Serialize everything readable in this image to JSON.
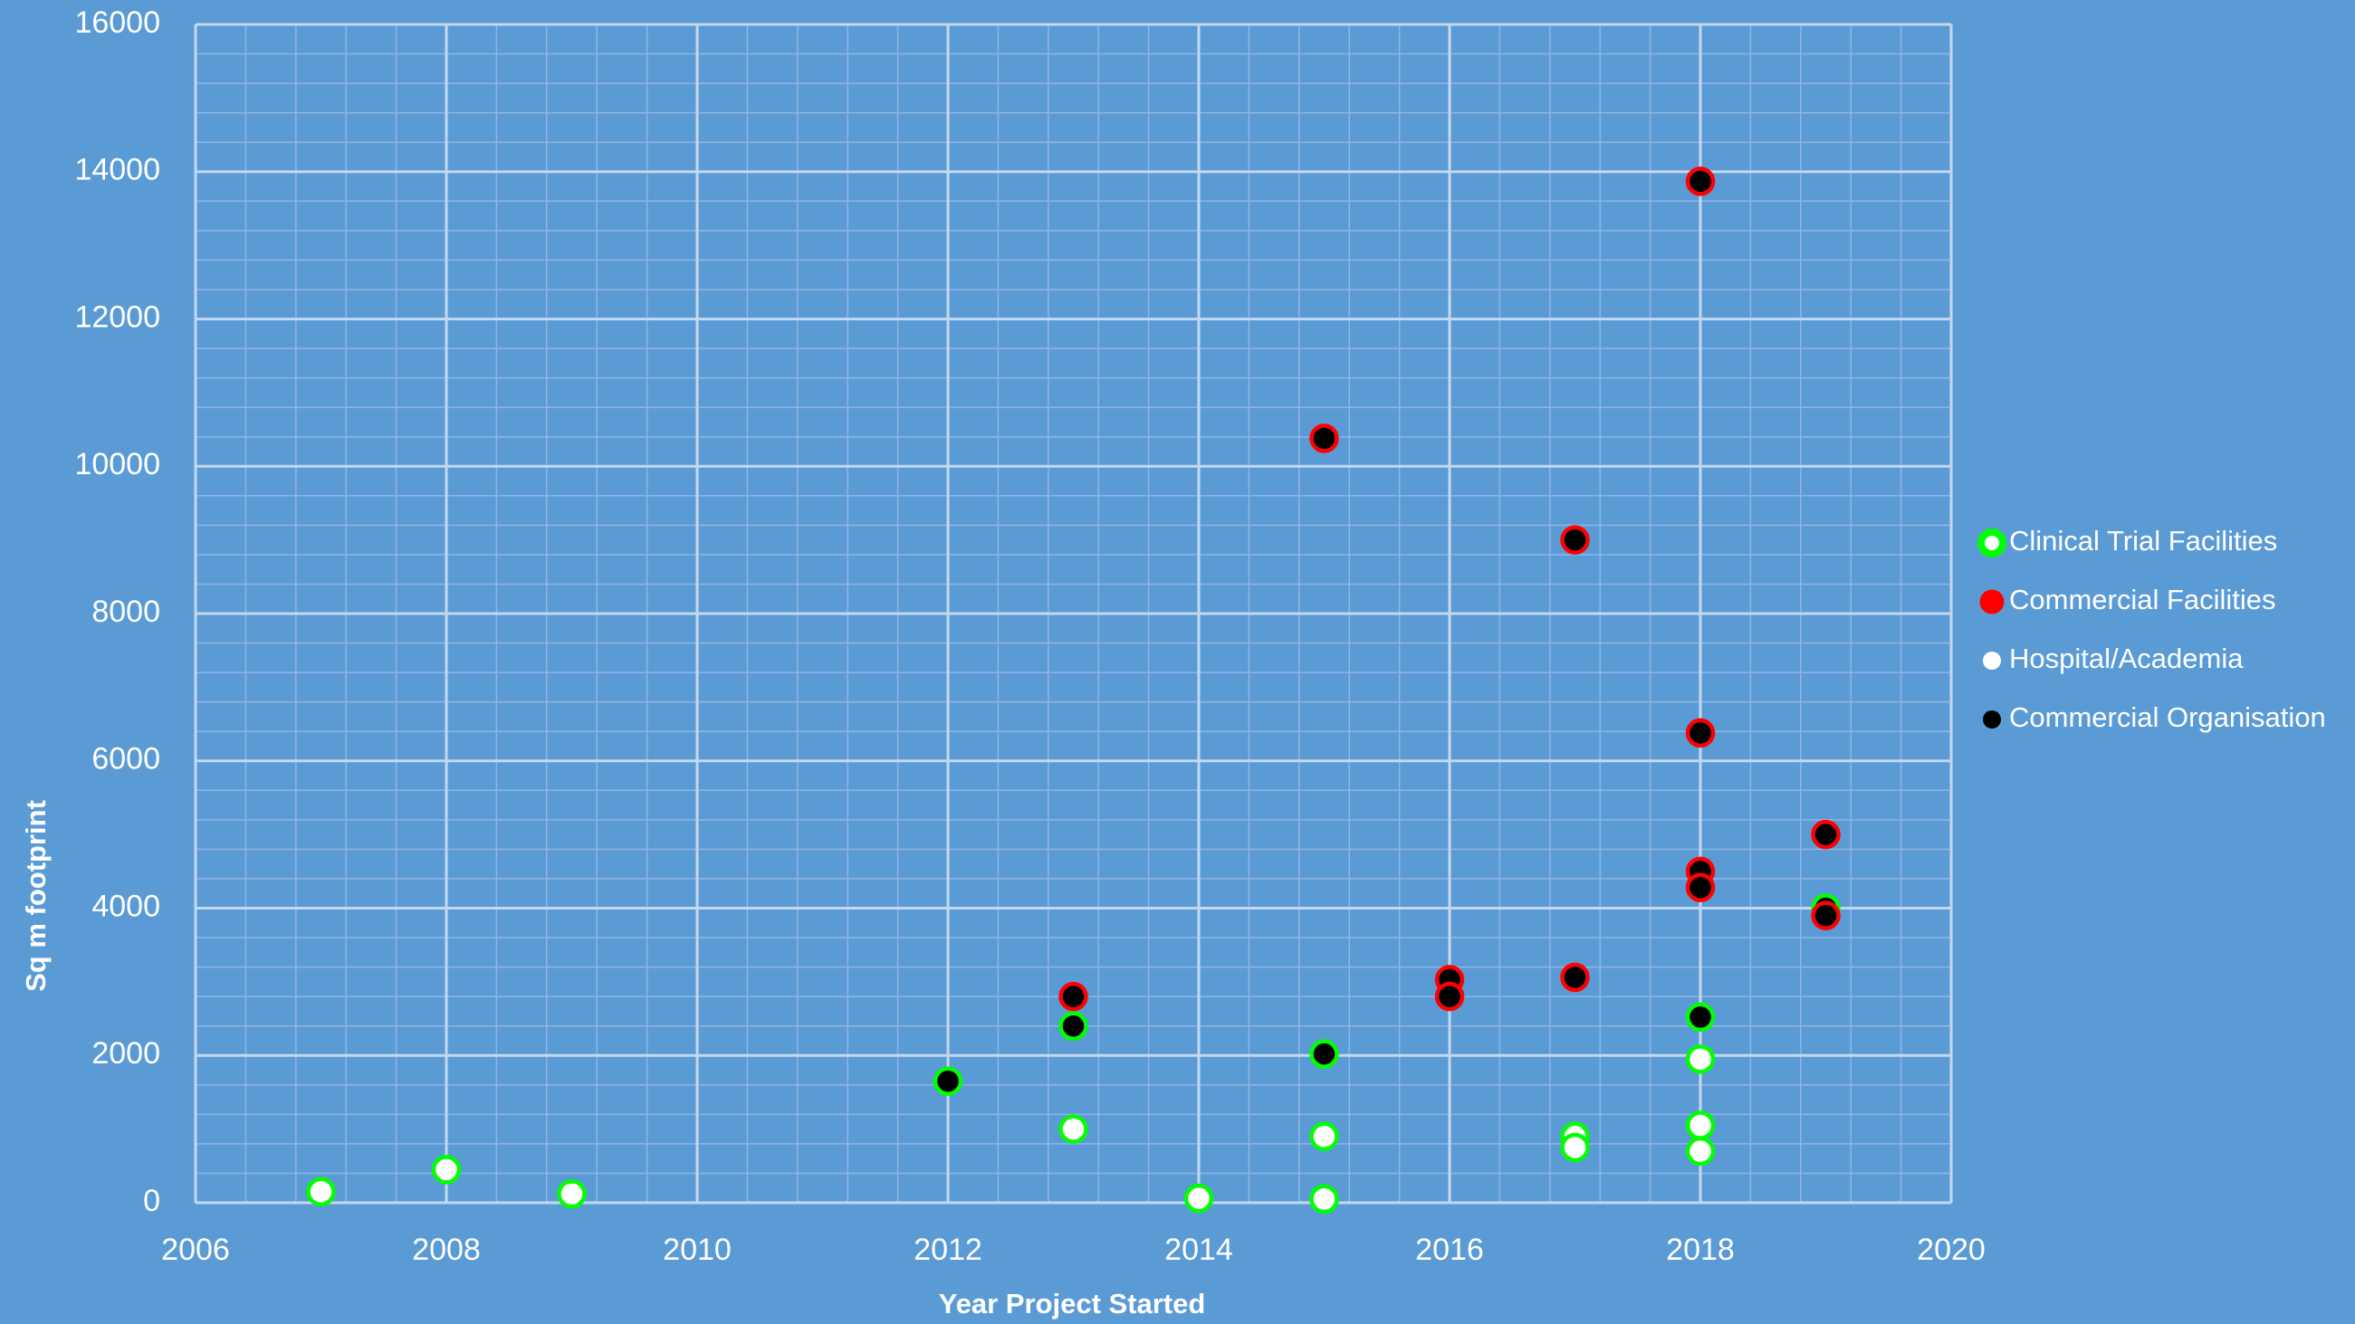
{
  "chart_data": {
    "type": "scatter",
    "x_label": "Year Project Started",
    "y_label": "Sq m footprint",
    "xlim": [
      2006,
      2020
    ],
    "xticks": [
      2006,
      2008,
      2010,
      2012,
      2014,
      2016,
      2018,
      2020
    ],
    "ylim": [
      0,
      16000
    ],
    "yticks": [
      0,
      2000,
      4000,
      6000,
      8000,
      10000,
      12000,
      14000,
      16000
    ],
    "grid": true,
    "legend_position": "right",
    "legend": [
      {
        "name": "Clinical Trial Facilities",
        "color": "#00ff00",
        "role": "edge"
      },
      {
        "name": "Commercial Facilities",
        "color": "#ff0000",
        "role": "edge"
      },
      {
        "name": "Hospital/Academia",
        "color": "#ffffff",
        "role": "fill"
      },
      {
        "name": "Commercial Organisation",
        "color": "#000000",
        "role": "fill"
      }
    ],
    "points": {
      "x": [
        2007,
        2008,
        2009,
        2013,
        2014,
        2015,
        2015,
        2017,
        2017,
        2018,
        2018,
        2018,
        2012,
        2013,
        2015,
        2018,
        2019,
        2013,
        2015,
        2016,
        2016,
        2017,
        2017,
        2018,
        2018,
        2018,
        2018,
        2019,
        2019
      ],
      "y": [
        150,
        450,
        120,
        1000,
        60,
        900,
        50,
        900,
        750,
        1950,
        1050,
        700,
        1650,
        2400,
        2020,
        2520,
        4000,
        2800,
        10380,
        3030,
        2800,
        9000,
        3060,
        13870,
        6380,
        4500,
        4280,
        5000,
        3900
      ],
      "edge": [
        0,
        0,
        0,
        0,
        0,
        0,
        0,
        0,
        0,
        0,
        0,
        0,
        0,
        0,
        0,
        0,
        0,
        1,
        1,
        1,
        1,
        1,
        1,
        1,
        1,
        1,
        1,
        1,
        1
      ],
      "fill": [
        2,
        2,
        2,
        2,
        2,
        2,
        2,
        2,
        2,
        2,
        2,
        2,
        3,
        3,
        3,
        3,
        3,
        3,
        3,
        3,
        3,
        3,
        3,
        3,
        3,
        3,
        3,
        3,
        3
      ]
    }
  }
}
